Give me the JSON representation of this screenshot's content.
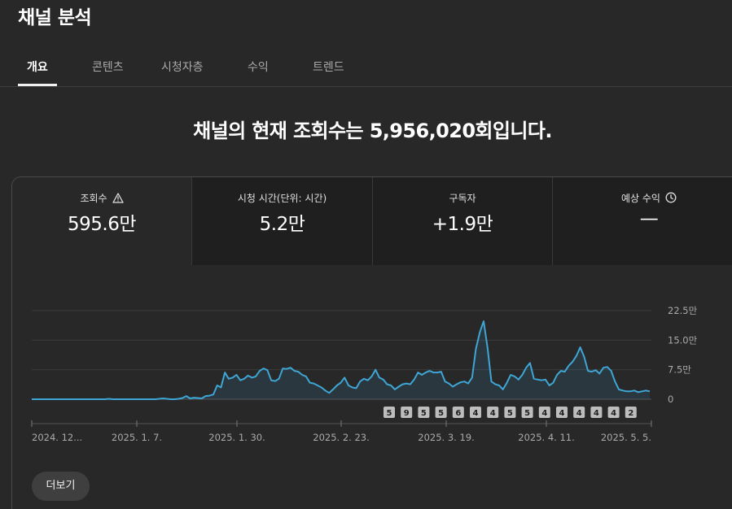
{
  "page": {
    "title": "채널 분석"
  },
  "tabs": [
    {
      "label": "개요",
      "active": true
    },
    {
      "label": "콘텐츠",
      "active": false
    },
    {
      "label": "시청자층",
      "active": false
    },
    {
      "label": "수익",
      "active": false
    },
    {
      "label": "트렌드",
      "active": false
    }
  ],
  "headline": "채널의 현재 조회수는 5,956,020회입니다.",
  "metrics": [
    {
      "label": "조회수",
      "value": "595.6만",
      "icon": "warning-icon",
      "active": true
    },
    {
      "label": "시청 시간(단위: 시간)",
      "value": "5.2만",
      "icon": "",
      "active": false
    },
    {
      "label": "구독자",
      "value": "+1.9만",
      "icon": "",
      "active": false
    },
    {
      "label": "예상 수익",
      "value": "—",
      "icon": "clock-icon",
      "active": false
    }
  ],
  "chart_data": {
    "type": "area",
    "y_tick_labels": [
      "22.5만",
      "15.0만",
      "7.5만",
      "0"
    ],
    "y_ticks": [
      225000,
      150000,
      75000,
      0
    ],
    "ylim": [
      0,
      225000
    ],
    "x_tick_labels": [
      "2024. 12...",
      "2025. 1. 7.",
      "2025. 1. 30.",
      "2025. 2. 23.",
      "2025. 3. 19.",
      "2025. 4. 11.",
      "2025. 5. 5."
    ],
    "series": [
      {
        "values": [
          0,
          0,
          0,
          0,
          0,
          0,
          0,
          0,
          0,
          0,
          0,
          0,
          0,
          0,
          0,
          0,
          0,
          0,
          0,
          0,
          1000,
          0,
          0,
          0,
          0,
          0,
          0,
          0,
          0,
          0,
          0,
          0,
          0,
          1000,
          2000,
          1000,
          0,
          0,
          1000,
          3000,
          8000,
          2000,
          4000,
          3000,
          2000,
          8000,
          9000,
          12000,
          35000,
          30000,
          68000,
          52000,
          55000,
          62000,
          48000,
          52000,
          60000,
          55000,
          58000,
          72000,
          78000,
          74000,
          48000,
          46000,
          52000,
          78000,
          77000,
          80000,
          72000,
          70000,
          62000,
          58000,
          42000,
          40000,
          35000,
          30000,
          22000,
          16000,
          25000,
          35000,
          42000,
          55000,
          35000,
          30000,
          28000,
          45000,
          52000,
          48000,
          58000,
          75000,
          55000,
          50000,
          38000,
          35000,
          25000,
          32000,
          38000,
          40000,
          38000,
          50000,
          68000,
          62000,
          68000,
          72000,
          68000,
          68000,
          70000,
          45000,
          40000,
          32000,
          38000,
          43000,
          45000,
          40000,
          55000,
          128000,
          170000,
          198000,
          130000,
          45000,
          38000,
          35000,
          25000,
          42000,
          62000,
          58000,
          50000,
          62000,
          80000,
          92000,
          52000,
          50000,
          48000,
          50000,
          35000,
          42000,
          62000,
          72000,
          70000,
          85000,
          95000,
          110000,
          132000,
          108000,
          72000,
          70000,
          74000,
          65000,
          80000,
          82000,
          72000,
          45000,
          25000,
          22000,
          20000,
          20000,
          22000,
          18000,
          20000,
          22000,
          20000
        ]
      }
    ],
    "event_badges": [
      "5",
      "9",
      "5",
      "5",
      "6",
      "4",
      "4",
      "5",
      "5",
      "4",
      "4",
      "4",
      "4",
      "4",
      "2"
    ]
  },
  "more_button": {
    "label": "더보기"
  }
}
